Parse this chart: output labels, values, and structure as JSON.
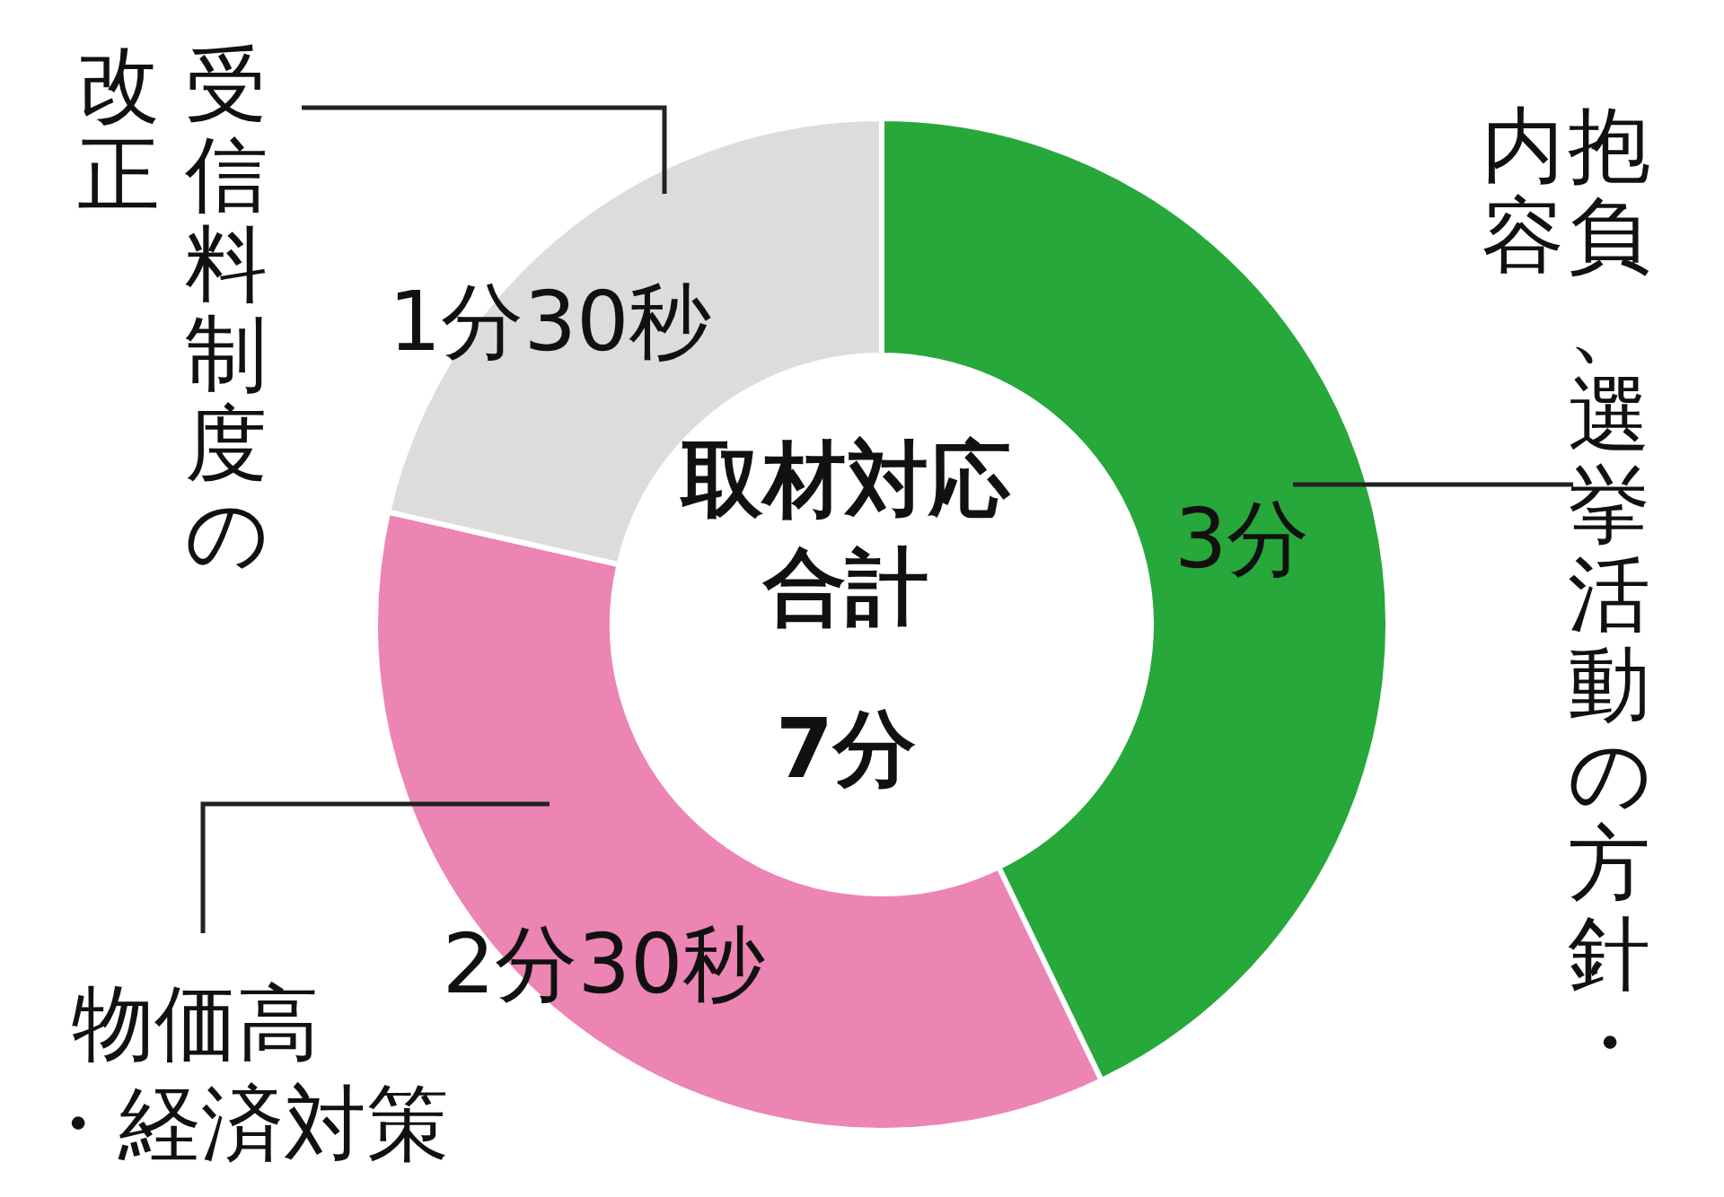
{
  "chart_data": {
    "type": "donut",
    "title": "取材対応合計",
    "annotations": [
      "7分"
    ],
    "categories": [
      "抱負、選挙活動の方針・内容",
      "物価高・経済対策",
      "受信料制度の改正"
    ],
    "values": [
      3,
      2.5,
      1.5
    ],
    "value_labels": [
      "3分",
      "2分30秒",
      "1分30秒"
    ],
    "colors": [
      "#27a83a",
      "#ec84b4",
      "#dcdcdc"
    ],
    "legend": false
  }
}
